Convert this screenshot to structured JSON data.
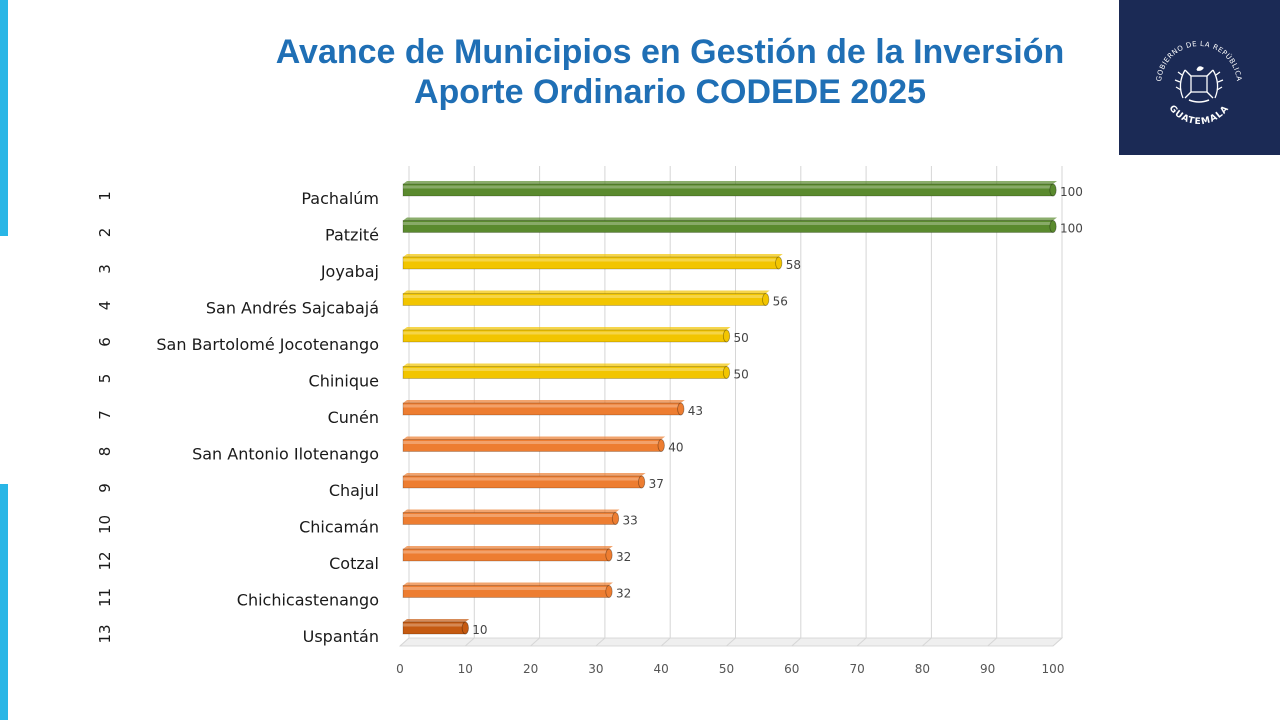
{
  "title": {
    "line1": "Avance de Municipios en Gestión de la Inversión",
    "line2": "Aporte Ordinario CODEDE 2025"
  },
  "logo": {
    "arc_top": "GOBIERNO DE LA REPÚBLICA",
    "arc_bottom": "GUATEMALA",
    "icon": "coat-of-arms-icon"
  },
  "colors": {
    "title": "#1f6fb5",
    "accent": "#29b6e6",
    "logo_bg": "#1b2a55",
    "green": "#5a8a2e",
    "yellow": "#f2c500",
    "orange": "#ed7d31",
    "dark_orange": "#c55a11"
  },
  "chart_data": {
    "type": "bar",
    "orientation": "horizontal",
    "title": "Avance de Municipios en Gestión de la Inversión Aporte Ordinario CODEDE 2025",
    "categories": [
      "Pachalúm",
      "Patzité",
      "Joyabaj",
      "San Andrés Sajcabajá",
      "San Bartolomé Jocotenango",
      "Chinique",
      "Cunén",
      "San Antonio Ilotenango",
      "Chajul",
      "Chicamán",
      "Cotzal",
      "Chichicastenango",
      "Uspantán"
    ],
    "ranks": [
      "1",
      "2",
      "3",
      "4",
      "6",
      "5",
      "7",
      "8",
      "9",
      "10",
      "12",
      "11",
      "13"
    ],
    "values": [
      100,
      100,
      58,
      56,
      50,
      50,
      43,
      40,
      37,
      33,
      32,
      32,
      10
    ],
    "bar_colors": [
      "green",
      "green",
      "yellow",
      "yellow",
      "yellow",
      "yellow",
      "orange",
      "orange",
      "orange",
      "orange",
      "orange",
      "orange",
      "dark_orange"
    ],
    "xlim": [
      0,
      100
    ],
    "xticks": [
      0,
      10,
      20,
      30,
      40,
      50,
      60,
      70,
      80,
      90,
      100
    ],
    "xlabel": "",
    "ylabel": "",
    "grid": true,
    "legend": "none"
  }
}
